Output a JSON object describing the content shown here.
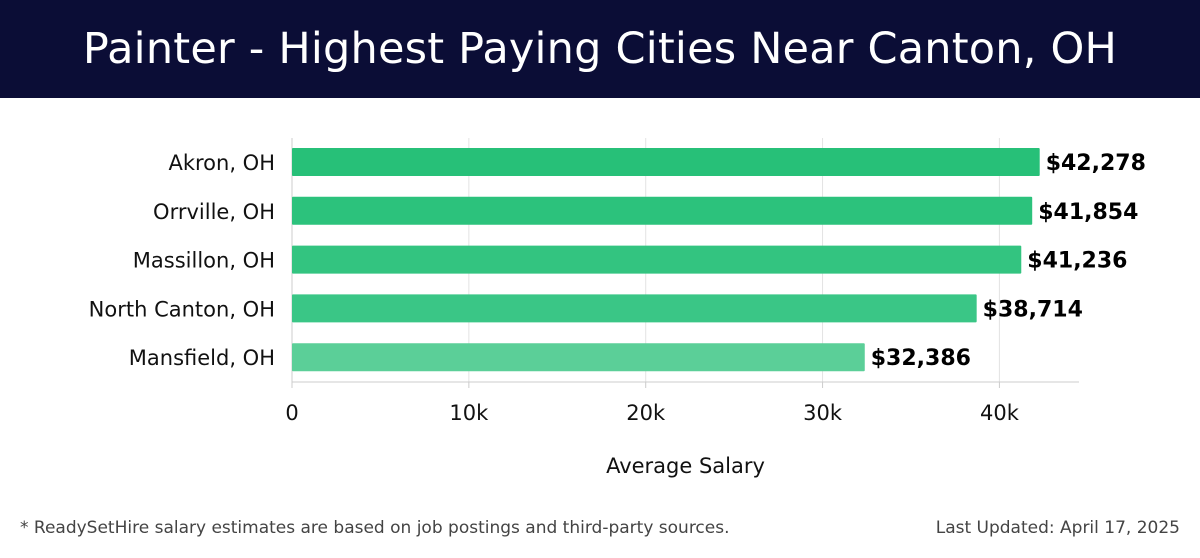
{
  "header": {
    "title": "Painter - Highest Paying Cities Near Canton, OH"
  },
  "chart_data": {
    "type": "bar",
    "orientation": "horizontal",
    "categories": [
      "Akron, OH",
      "Orrville, OH",
      "Massillon, OH",
      "North Canton, OH",
      "Mansfield, OH"
    ],
    "values": [
      42278,
      41854,
      41236,
      38714,
      32386
    ],
    "value_labels": [
      "$42,278",
      "$41,854",
      "$41,236",
      "$38,714",
      "$32,386"
    ],
    "xlabel": "Average Salary",
    "ylabel": "",
    "xlim": [
      0,
      44500
    ],
    "x_ticks": [
      0,
      10000,
      20000,
      30000,
      40000
    ],
    "x_tick_labels": [
      "0",
      "10k",
      "20k",
      "30k",
      "40k"
    ],
    "grid": "vertical",
    "bar_colors": [
      "#27c078",
      "#2cc27c",
      "#33c480",
      "#3ac686",
      "#5bcf98"
    ]
  },
  "footer": {
    "note": "* ReadySetHire salary estimates are based on job postings and third-party sources.",
    "updated": "Last Updated: April 17, 2025"
  },
  "colors": {
    "header_bg": "#0b0d36",
    "grid": "#e3e3e3",
    "axis": "#cccccc"
  }
}
